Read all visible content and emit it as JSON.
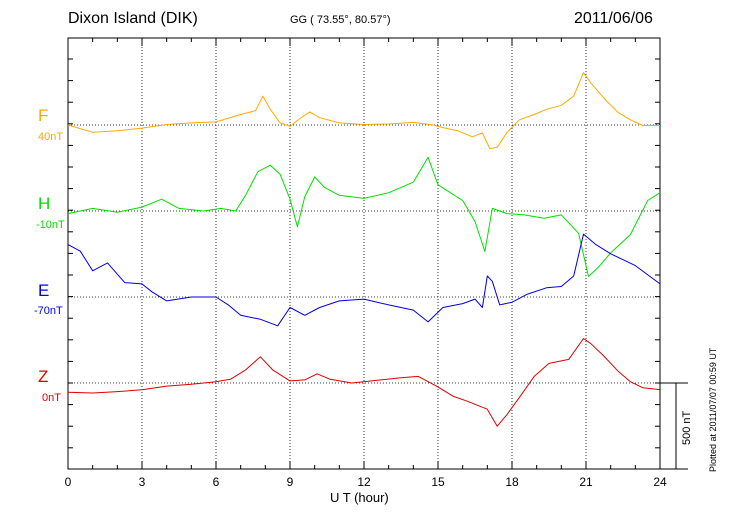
{
  "header": {
    "station": "Dixon Island (DIK)",
    "coords": "GG ( 73.55°,  80.57°)",
    "date": "2011/06/06"
  },
  "footer": {
    "plotted": "Plotted at 2011/07/07 00:59 UT"
  },
  "chart_data": {
    "type": "line",
    "xlabel": "U T (hour)",
    "xlim": [
      0,
      24
    ],
    "xticks": [
      0,
      3,
      6,
      9,
      12,
      15,
      18,
      21,
      24
    ],
    "scale_bar_label": "500 nT",
    "grid": true,
    "series": [
      {
        "name": "F",
        "baseline_label": "40nT",
        "color": "#ffaa00",
        "points": [
          [
            0,
            0
          ],
          [
            1,
            -28
          ],
          [
            2,
            -22
          ],
          [
            3,
            -12
          ],
          [
            4,
            2
          ],
          [
            5,
            8
          ],
          [
            6,
            12
          ],
          [
            7,
            40
          ],
          [
            7.6,
            55
          ],
          [
            7.9,
            110
          ],
          [
            8.2,
            60
          ],
          [
            8.6,
            8
          ],
          [
            9,
            -5
          ],
          [
            9.4,
            25
          ],
          [
            9.8,
            50
          ],
          [
            10.2,
            28
          ],
          [
            11,
            8
          ],
          [
            12,
            2
          ],
          [
            13,
            4
          ],
          [
            14,
            10
          ],
          [
            14.8,
            0
          ],
          [
            15.2,
            -10
          ],
          [
            15.8,
            -22
          ],
          [
            16.4,
            -45
          ],
          [
            16.8,
            -30
          ],
          [
            17.1,
            -90
          ],
          [
            17.4,
            -85
          ],
          [
            17.8,
            -28
          ],
          [
            18.3,
            20
          ],
          [
            18.9,
            40
          ],
          [
            19.4,
            60
          ],
          [
            20,
            75
          ],
          [
            20.5,
            110
          ],
          [
            20.9,
            200
          ],
          [
            21.2,
            160
          ],
          [
            21.8,
            95
          ],
          [
            22.3,
            48
          ],
          [
            22.8,
            20
          ],
          [
            23.3,
            -2
          ],
          [
            24,
            -2
          ]
        ]
      },
      {
        "name": "H",
        "baseline_label": "-10nT",
        "color": "#00e000",
        "points": [
          [
            0,
            -10
          ],
          [
            1,
            10
          ],
          [
            2,
            -5
          ],
          [
            3,
            15
          ],
          [
            3.8,
            45
          ],
          [
            4.5,
            10
          ],
          [
            5.5,
            0
          ],
          [
            6.2,
            10
          ],
          [
            6.8,
            0
          ],
          [
            7.2,
            60
          ],
          [
            7.7,
            150
          ],
          [
            8.2,
            175
          ],
          [
            8.6,
            140
          ],
          [
            9,
            45
          ],
          [
            9.3,
            -60
          ],
          [
            9.6,
            55
          ],
          [
            10,
            130
          ],
          [
            10.4,
            90
          ],
          [
            11,
            60
          ],
          [
            12,
            48
          ],
          [
            13,
            70
          ],
          [
            14,
            110
          ],
          [
            14.6,
            205
          ],
          [
            15,
            100
          ],
          [
            16,
            40
          ],
          [
            16.5,
            -40
          ],
          [
            16.9,
            -155
          ],
          [
            17.2,
            10
          ],
          [
            17.8,
            -10
          ],
          [
            18.5,
            -15
          ],
          [
            19.3,
            -28
          ],
          [
            20,
            -15
          ],
          [
            20.7,
            -85
          ],
          [
            21.1,
            -250
          ],
          [
            21.5,
            -215
          ],
          [
            22,
            -160
          ],
          [
            22.8,
            -90
          ],
          [
            23.5,
            40
          ],
          [
            24,
            70
          ]
        ]
      },
      {
        "name": "E",
        "baseline_label": "-70nT",
        "color": "#0000e0",
        "points": [
          [
            0,
            200
          ],
          [
            0.5,
            175
          ],
          [
            1,
            100
          ],
          [
            1.6,
            130
          ],
          [
            2.3,
            55
          ],
          [
            3,
            50
          ],
          [
            3.4,
            20
          ],
          [
            4,
            -15
          ],
          [
            5,
            0
          ],
          [
            6,
            0
          ],
          [
            6.5,
            -30
          ],
          [
            7,
            -70
          ],
          [
            7.8,
            -85
          ],
          [
            8.5,
            -110
          ],
          [
            9,
            -40
          ],
          [
            9.6,
            -70
          ],
          [
            10.2,
            -40
          ],
          [
            11,
            -15
          ],
          [
            12,
            -8
          ],
          [
            13,
            -30
          ],
          [
            14,
            -50
          ],
          [
            14.6,
            -95
          ],
          [
            15.2,
            -40
          ],
          [
            16,
            -25
          ],
          [
            16.5,
            -8
          ],
          [
            16.8,
            -40
          ],
          [
            17,
            80
          ],
          [
            17.2,
            60
          ],
          [
            17.5,
            -30
          ],
          [
            18,
            -20
          ],
          [
            18.6,
            10
          ],
          [
            19.4,
            35
          ],
          [
            20,
            40
          ],
          [
            20.5,
            80
          ],
          [
            20.9,
            240
          ],
          [
            21.4,
            200
          ],
          [
            22,
            165
          ],
          [
            23,
            120
          ],
          [
            24,
            50
          ]
        ]
      },
      {
        "name": "Z",
        "baseline_label": "0nT",
        "color": "#e00000",
        "points": [
          [
            0,
            -35
          ],
          [
            1,
            -38
          ],
          [
            2,
            -33
          ],
          [
            3,
            -26
          ],
          [
            4,
            -12
          ],
          [
            5,
            -5
          ],
          [
            6,
            5
          ],
          [
            6.6,
            15
          ],
          [
            7.2,
            50
          ],
          [
            7.8,
            100
          ],
          [
            8.3,
            50
          ],
          [
            9,
            8
          ],
          [
            9.6,
            12
          ],
          [
            10.1,
            35
          ],
          [
            10.6,
            15
          ],
          [
            11.5,
            0
          ],
          [
            12.5,
            10
          ],
          [
            13.5,
            20
          ],
          [
            14.2,
            25
          ],
          [
            15,
            -15
          ],
          [
            15.6,
            -50
          ],
          [
            16.2,
            -70
          ],
          [
            16.6,
            -85
          ],
          [
            17,
            -100
          ],
          [
            17.4,
            -165
          ],
          [
            17.8,
            -120
          ],
          [
            18.3,
            -55
          ],
          [
            18.9,
            25
          ],
          [
            19.5,
            75
          ],
          [
            20.3,
            90
          ],
          [
            20.9,
            170
          ],
          [
            21.2,
            150
          ],
          [
            21.7,
            105
          ],
          [
            22.3,
            45
          ],
          [
            22.8,
            5
          ],
          [
            23.3,
            -18
          ],
          [
            24,
            -25
          ]
        ]
      }
    ]
  }
}
